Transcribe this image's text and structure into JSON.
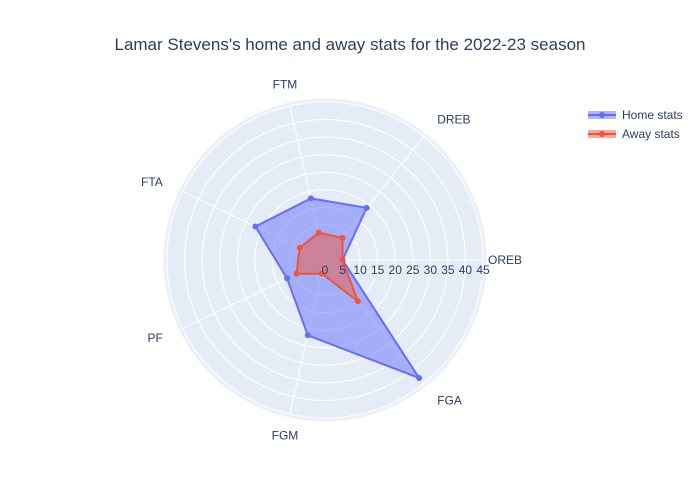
{
  "colors": {
    "polar_bg": "#e5ecf6",
    "grid": "#ffffff",
    "text": "#2a3f5f",
    "home": "#636efa",
    "away": "#ef553b"
  },
  "chart_data": {
    "type": "radar",
    "title": "Lamar Stevens's home and away stats for the 2022-23 season",
    "categories": [
      "OREB",
      "DREB",
      "FTM",
      "FTA",
      "PF",
      "FGM",
      "FGA"
    ],
    "radial_range": [
      0,
      45
    ],
    "radial_ticks": [
      "0",
      "5",
      "10",
      "15",
      "20",
      "25",
      "30",
      "35",
      "40",
      "45"
    ],
    "angular_direction": "counterclockwise",
    "start_category_angle_deg": 0,
    "legend_position": "top-right",
    "series": [
      {
        "name": "Home stats",
        "values": [
          5,
          19,
          18,
          22,
          12,
          22,
          43
        ]
      },
      {
        "name": "Away stats",
        "values": [
          5,
          8,
          8,
          8,
          9,
          4,
          15
        ]
      }
    ]
  }
}
